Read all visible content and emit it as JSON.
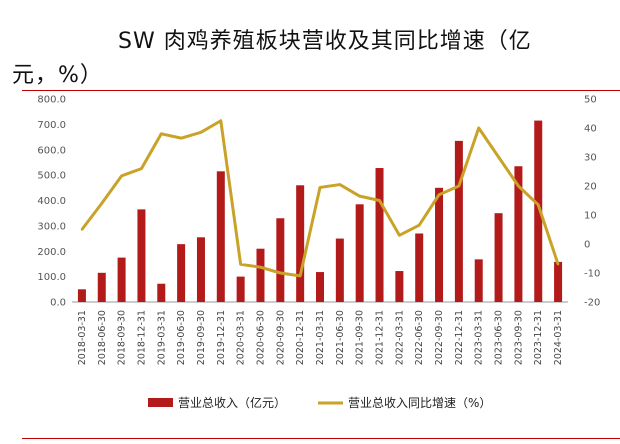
{
  "title": {
    "line1": "SW  肉鸡养殖板块营收及其同比增速（亿",
    "line2": "元，%）"
  },
  "colors": {
    "bar": "#b31b1b",
    "line": "#c9a227",
    "rule": "#c00000"
  },
  "chart_data": {
    "type": "bar",
    "title": "SW  肉鸡养殖板块营收及其同比增速（亿元，%）",
    "categories": [
      "2018-03-31",
      "2018-06-30",
      "2018-09-30",
      "2018-12-31",
      "2019-03-31",
      "2019-06-30",
      "2019-09-30",
      "2019-12-31",
      "2020-03-31",
      "2020-06-30",
      "2020-09-30",
      "2020-12-31",
      "2021-03-31",
      "2021-06-30",
      "2021-09-30",
      "2021-12-31",
      "2022-03-31",
      "2022-06-30",
      "2022-09-30",
      "2022-12-31",
      "2023-03-31",
      "2023-06-30",
      "2023-09-30",
      "2023-12-31",
      "2024-03-31"
    ],
    "series": [
      {
        "name": "营业总收入（亿元）",
        "type": "bar",
        "axis": "left",
        "values": [
          50,
          115,
          175,
          365,
          72,
          228,
          255,
          515,
          100,
          210,
          330,
          460,
          118,
          250,
          385,
          528,
          122,
          270,
          450,
          635,
          168,
          350,
          535,
          715,
          158
        ]
      },
      {
        "name": "营业总收入同比增速（%）",
        "type": "line",
        "axis": "right",
        "values": [
          5,
          14,
          23.5,
          26,
          38,
          36.5,
          38.5,
          42.5,
          -7,
          -8,
          -10,
          -11,
          19.5,
          20.5,
          16.5,
          15,
          3,
          6.5,
          17,
          20,
          40,
          30,
          20,
          13.5,
          -7
        ]
      }
    ],
    "y_left": {
      "min": 0,
      "max": 800,
      "ticks": [
        "0.0",
        "100.0",
        "200.0",
        "300.0",
        "400.0",
        "500.0",
        "600.0",
        "700.0",
        "800.0"
      ]
    },
    "y_right": {
      "min": -20,
      "max": 50,
      "ticks": [
        "-20",
        "-10",
        "0",
        "10",
        "20",
        "30",
        "40",
        "50"
      ]
    },
    "legend": {
      "position": "bottom",
      "items": [
        "营业总收入（亿元）",
        "营业总收入同比增速（%）"
      ]
    },
    "grid": false
  }
}
